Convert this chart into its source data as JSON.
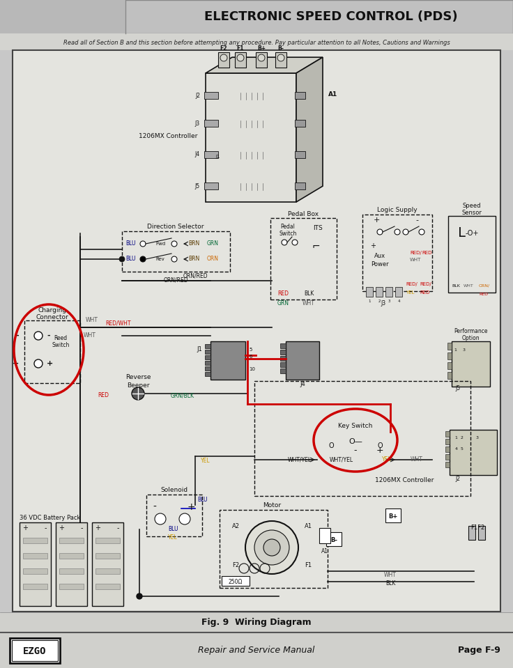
{
  "title": "ELECTRONIC SPEED CONTROL (PDS)",
  "subtitle": "Read all of Section B and this section before attempting any procedure. Pay particular attention to all Notes, Cautions and Warnings",
  "fig_caption": "Fig. 9  Wiring Diagram",
  "footer_center": "Repair and Service Manual",
  "footer_right": "Page F-9",
  "bg_outer": "#c8c8c8",
  "bg_header": "#d0d0d0",
  "bg_diagram": "#e8e8e4",
  "bg_footer": "#d8d8d8",
  "black": "#111111",
  "red": "#cc0000",
  "wire_black": "#1a1a1a"
}
